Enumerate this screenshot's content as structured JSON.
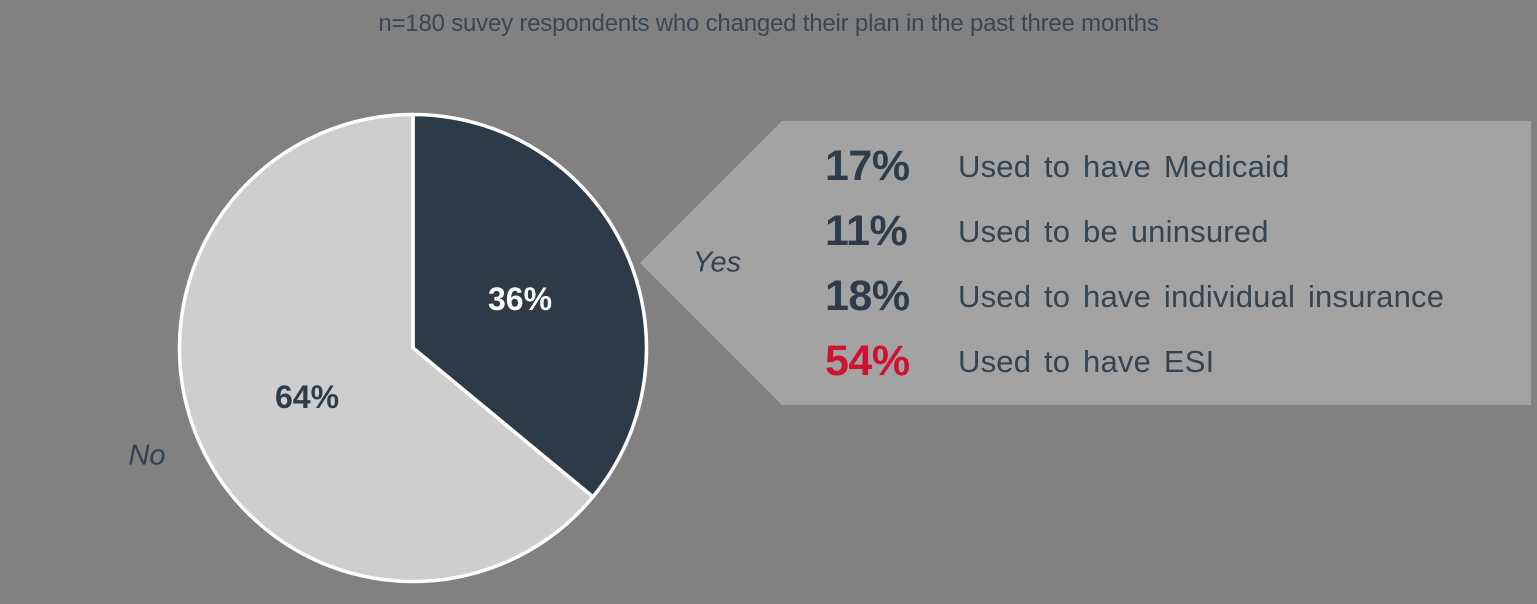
{
  "colors": {
    "background": "#818181",
    "callout_fill": "#a3a3a3",
    "pie_stroke": "#ffffff",
    "text_slate": "#35424e",
    "text_red": "#ce1331"
  },
  "chart_data": {
    "type": "pie",
    "title": "n=180 suvey respondents who changed their plan in the past three months",
    "legend_position": "none",
    "start_angle_deg": 0,
    "direction": "clockwise",
    "slices": [
      {
        "label": "Yes",
        "value": 36,
        "value_label": "36%",
        "color": "#2c3b47",
        "value_label_color": "#ffffff"
      },
      {
        "label": "No",
        "value": 64,
        "value_label": "64%",
        "color": "#cecece",
        "value_label_color": "#2e3d4a"
      }
    ],
    "callout": {
      "points_to": "Yes",
      "rows": [
        {
          "pct": "17%",
          "label": "Used to have Medicaid",
          "pct_color": "#2e3c49"
        },
        {
          "pct": "11%",
          "label": "Used to be uninsured",
          "pct_color": "#2e3c49"
        },
        {
          "pct": "18%",
          "label": "Used to have individual insurance",
          "pct_color": "#2e3c49"
        },
        {
          "pct": "54%",
          "label": "Used to have ESI",
          "pct_color": "#ce1331"
        }
      ]
    }
  }
}
